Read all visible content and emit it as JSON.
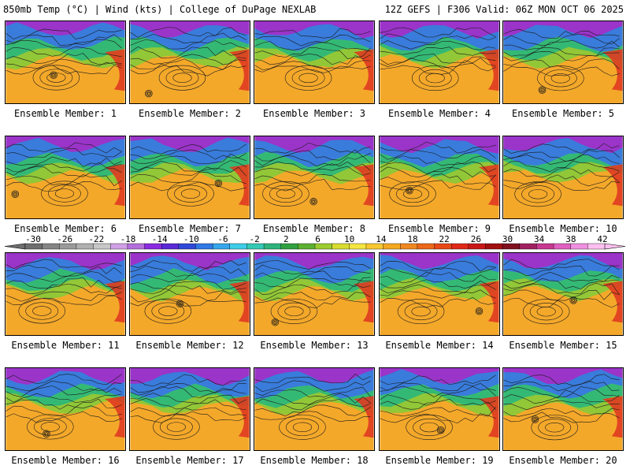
{
  "header": {
    "left": "850mb Temp (°C) | Wind (kts) | College of DuPage NEXLAB",
    "right": "12Z GEFS | F306 Valid: 06Z MON OCT 06 2025"
  },
  "panel_caption_prefix": "Ensemble Member: ",
  "members": [
    1,
    2,
    3,
    4,
    5,
    6,
    7,
    8,
    9,
    10,
    11,
    12,
    13,
    14,
    15,
    16,
    17,
    18,
    19,
    20
  ],
  "colorbar": {
    "labels": [
      "-30",
      "-26",
      "-22",
      "-18",
      "-14",
      "-10",
      "-6",
      "-2",
      "2",
      "6",
      "10",
      "14",
      "18",
      "22",
      "26",
      "30",
      "34",
      "38",
      "42"
    ],
    "colors": [
      "#6e6e6e",
      "#858585",
      "#9a9a9a",
      "#b0b0b0",
      "#c7c7c7",
      "#d0a0e6",
      "#b46fdc",
      "#8a2be2",
      "#5a2ad8",
      "#3048d8",
      "#2f79e6",
      "#36a6ec",
      "#3fcde8",
      "#34c9b4",
      "#2eb37c",
      "#30a040",
      "#5cb030",
      "#9ccc30",
      "#d8dc30",
      "#f4e640",
      "#f8c830",
      "#f4a820",
      "#f08820",
      "#ec6818",
      "#e84818",
      "#e02818",
      "#c81818",
      "#a01010",
      "#801020",
      "#a02060",
      "#c83890",
      "#e060c0",
      "#f090e0",
      "#ffc0f0"
    ]
  },
  "map_colors": {
    "cold": "#a030c8",
    "cool": "#3a78e0",
    "mild": "#2fb878",
    "warm": "#8cc838",
    "hot": "#f4a82a",
    "land_hot": "#e03a20",
    "contour": "#1a1a1a"
  }
}
